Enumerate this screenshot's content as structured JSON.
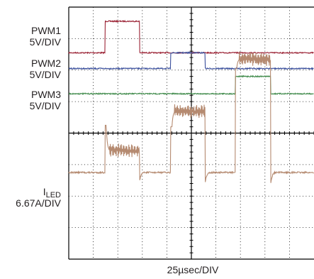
{
  "chart_data": {
    "type": "line",
    "xlabel": "25µsec/DIV",
    "grid": true,
    "divisions": {
      "x": 10,
      "y": 8
    },
    "x_unit": "µs",
    "x_per_div": 25,
    "colors": {
      "grid": "#000000",
      "PWM1": "#9b2335",
      "PWM2": "#3a4f9c",
      "PWM3": "#3f8a4a",
      "ILED": "#b58a70"
    },
    "channel_labels": [
      {
        "id": "pwm1",
        "name": "PWM1",
        "scale": "5V/DIV"
      },
      {
        "id": "pwm2",
        "name": "PWM2",
        "scale": "5V/DIV"
      },
      {
        "id": "pwm3",
        "name": "PWM3",
        "scale": "5V/DIV"
      },
      {
        "id": "iled",
        "name": "I",
        "sub": "LED",
        "scale": "6.67A/DIV"
      }
    ],
    "series": [
      {
        "name": "PWM1",
        "baseline_div": 1.45,
        "high_div": 0.45,
        "pulses": [
          {
            "start": 37,
            "end": 72
          }
        ]
      },
      {
        "name": "PWM2",
        "baseline_div": 1.95,
        "high_div": 1.45,
        "pulses": [
          {
            "start": 104,
            "end": 139
          }
        ]
      },
      {
        "name": "PWM3",
        "baseline_div": 2.75,
        "high_div": 2.2,
        "pulses": [
          {
            "start": 170,
            "end": 206
          }
        ]
      },
      {
        "name": "ILED",
        "baseline_div": 5.25,
        "pulses": [
          {
            "start": 37,
            "end": 72,
            "spike_div": 3.75,
            "level_div": 4.55
          },
          {
            "start": 104,
            "end": 139,
            "spike_div": 3.8,
            "level_div": 3.3
          },
          {
            "start": 170,
            "end": 206,
            "spike_div": 1.95,
            "level_div": 1.65
          }
        ],
        "undershoot_div": 5.6
      }
    ]
  }
}
